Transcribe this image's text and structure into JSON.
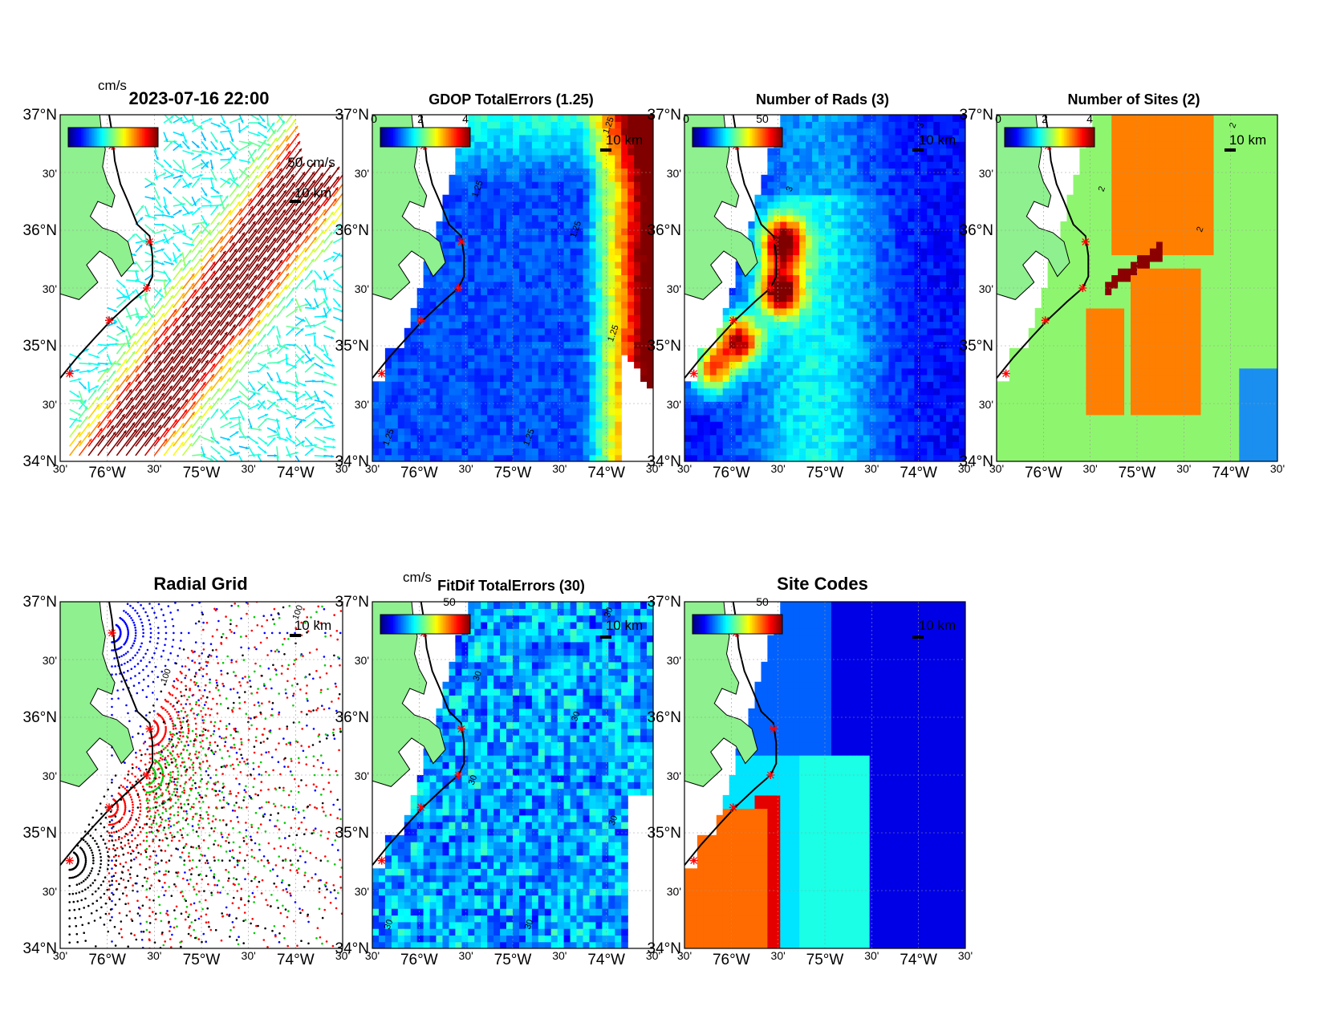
{
  "figure": {
    "timestamp": "2023-07-16 22:00",
    "scale_km": "10 km",
    "vector_scale": "50 cm/s",
    "units": "cm/s"
  },
  "axes": {
    "lat_ticks": [
      {
        "lat": 37.0,
        "label": "37°N"
      },
      {
        "lat": 36.5,
        "label": "30'"
      },
      {
        "lat": 36.0,
        "label": "36°N"
      },
      {
        "lat": 35.5,
        "label": "30'"
      },
      {
        "lat": 35.0,
        "label": "35°N"
      },
      {
        "lat": 34.5,
        "label": "30'"
      },
      {
        "lat": 34.0,
        "label": "34°N"
      }
    ],
    "lon_ticks": [
      {
        "lon": -76.5,
        "label": "30'"
      },
      {
        "lon": -76.0,
        "label": "76°W"
      },
      {
        "lon": -75.5,
        "label": "30'"
      },
      {
        "lon": -75.0,
        "label": "75°W"
      },
      {
        "lon": -74.5,
        "label": "30'"
      },
      {
        "lon": -74.0,
        "label": "74°W"
      },
      {
        "lon": -73.5,
        "label": "30'"
      }
    ],
    "lon_range": [
      -76.5,
      -73.5
    ],
    "lat_range": [
      34.0,
      37.0
    ]
  },
  "chart_data": [
    {
      "id": "p1",
      "type": "quiver",
      "title": "",
      "caxis": [
        0,
        50
      ],
      "colorbar_ticks": [],
      "colorbar_label": "cm/s",
      "xlim": [
        -76.5,
        -73.5
      ],
      "ylim": [
        34.0,
        37.0
      ]
    },
    {
      "id": "p2",
      "type": "heatmap",
      "title": "GDOP TotalErrors (1.25)",
      "caxis": [
        0,
        4
      ],
      "colorbar_ticks": [
        "0",
        "2",
        "4"
      ],
      "contour_level": 1.25,
      "contour_labels": [
        "1.25",
        "1.25",
        "1.25",
        "1.25",
        "1.25",
        "1.25"
      ]
    },
    {
      "id": "p3",
      "type": "heatmap",
      "title": "Number of Rads (3)",
      "caxis": [
        0,
        100
      ],
      "colorbar_ticks": [
        "0",
        "50"
      ],
      "contour_level": 3,
      "contour_labels": [
        "3",
        "3"
      ]
    },
    {
      "id": "p4",
      "type": "heatmap",
      "title": "Number of Sites (2)",
      "caxis": [
        0,
        4
      ],
      "colorbar_ticks": [
        "0",
        "2",
        "4"
      ],
      "contour_level": 2,
      "contour_labels": [
        "2",
        "2",
        "2"
      ]
    },
    {
      "id": "p5",
      "type": "scatter",
      "title": "Radial Grid",
      "contour_level": 100,
      "contour_labels": [
        "100",
        "100"
      ]
    },
    {
      "id": "p6",
      "type": "heatmap",
      "title": "FitDif TotalErrors (30)",
      "caxis": [
        0,
        100
      ],
      "colorbar_ticks": [
        "50"
      ],
      "colorbar_label": "cm/s",
      "contour_level": 30,
      "contour_labels": [
        "30",
        "30",
        "30",
        "30",
        "30",
        "30",
        "30"
      ]
    },
    {
      "id": "p7",
      "type": "heatmap",
      "title": "Site Codes",
      "caxis": [
        0,
        100
      ],
      "colorbar_ticks": [
        "50"
      ]
    }
  ],
  "sites": [
    {
      "lon": -75.95,
      "lat": 36.73
    },
    {
      "lon": -75.55,
      "lat": 35.9
    },
    {
      "lon": -75.58,
      "lat": 35.5
    },
    {
      "lon": -75.98,
      "lat": 35.22
    },
    {
      "lon": -76.4,
      "lat": 34.76
    }
  ],
  "colors": {
    "land": "#8ef08e",
    "coast": "#000000",
    "site_marker": "#ff0000",
    "radial_sets": [
      "#0000ff",
      "#ff0000",
      "#00cc00",
      "#ff0000",
      "#000000"
    ]
  }
}
